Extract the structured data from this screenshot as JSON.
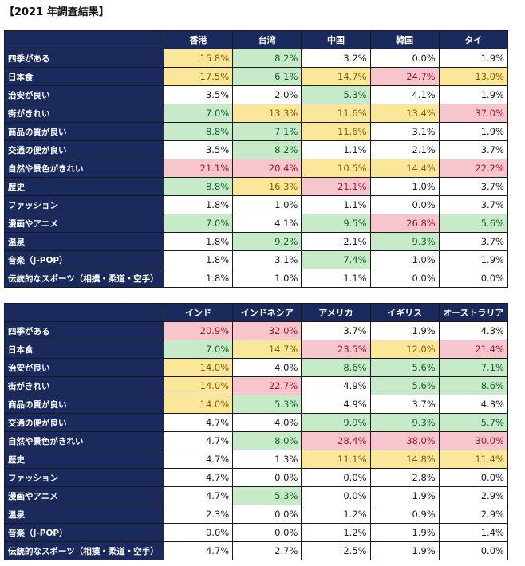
{
  "title": "【2021 年調査結果】",
  "colors": {
    "header_bg": "#1b2a5c",
    "yellow": "#fbe79a",
    "green": "#c7ebc9",
    "pink": "#f7c5cc"
  },
  "chart_data": [
    {
      "type": "table",
      "columns": [
        "香港",
        "台湾",
        "中国",
        "韓国",
        "タイ"
      ],
      "rows": [
        {
          "label": "四季がある",
          "values": [
            "15.8%",
            "8.2%",
            "3.2%",
            "0.0%",
            "1.9%"
          ],
          "highlight": [
            "y",
            "g",
            "n",
            "n",
            "n"
          ]
        },
        {
          "label": "日本食",
          "values": [
            "17.5%",
            "6.1%",
            "14.7%",
            "24.7%",
            "13.0%"
          ],
          "highlight": [
            "y",
            "g",
            "y",
            "p",
            "y"
          ]
        },
        {
          "label": "治安が良い",
          "values": [
            "3.5%",
            "2.0%",
            "5.3%",
            "4.1%",
            "1.9%"
          ],
          "highlight": [
            "n",
            "n",
            "g",
            "n",
            "n"
          ]
        },
        {
          "label": "街がきれい",
          "values": [
            "7.0%",
            "13.3%",
            "11.6%",
            "13.4%",
            "37.0%"
          ],
          "highlight": [
            "g",
            "y",
            "y",
            "y",
            "p"
          ]
        },
        {
          "label": "商品の質が良い",
          "values": [
            "8.8%",
            "7.1%",
            "11.6%",
            "3.1%",
            "1.9%"
          ],
          "highlight": [
            "g",
            "g",
            "y",
            "n",
            "n"
          ]
        },
        {
          "label": "交通の便が良い",
          "values": [
            "3.5%",
            "8.2%",
            "1.1%",
            "2.1%",
            "3.7%"
          ],
          "highlight": [
            "n",
            "g",
            "n",
            "n",
            "n"
          ]
        },
        {
          "label": "自然や景色がきれい",
          "values": [
            "21.1%",
            "20.4%",
            "10.5%",
            "14.4%",
            "22.2%"
          ],
          "highlight": [
            "p",
            "p",
            "y",
            "y",
            "p"
          ]
        },
        {
          "label": "歴史",
          "values": [
            "8.8%",
            "16.3%",
            "21.1%",
            "1.0%",
            "3.7%"
          ],
          "highlight": [
            "g",
            "y",
            "p",
            "n",
            "n"
          ]
        },
        {
          "label": "ファッション",
          "values": [
            "1.8%",
            "1.0%",
            "1.1%",
            "0.0%",
            "3.7%"
          ],
          "highlight": [
            "n",
            "n",
            "n",
            "n",
            "n"
          ]
        },
        {
          "label": "漫画やアニメ",
          "values": [
            "7.0%",
            "4.1%",
            "9.5%",
            "26.8%",
            "5.6%"
          ],
          "highlight": [
            "g",
            "n",
            "g",
            "p",
            "g"
          ]
        },
        {
          "label": "温泉",
          "values": [
            "1.8%",
            "9.2%",
            "2.1%",
            "9.3%",
            "3.7%"
          ],
          "highlight": [
            "n",
            "g",
            "n",
            "g",
            "n"
          ]
        },
        {
          "label": "音楽（J-POP）",
          "values": [
            "1.8%",
            "3.1%",
            "7.4%",
            "1.0%",
            "1.9%"
          ],
          "highlight": [
            "n",
            "n",
            "g",
            "n",
            "n"
          ]
        },
        {
          "label": "伝統的なスポーツ（相撲・柔道・空手）",
          "values": [
            "1.8%",
            "1.0%",
            "1.1%",
            "0.0%",
            "0.0%"
          ],
          "highlight": [
            "n",
            "n",
            "n",
            "n",
            "n"
          ]
        }
      ]
    },
    {
      "type": "table",
      "columns": [
        "インド",
        "インドネシア",
        "アメリカ",
        "イギリス",
        "オーストラリア"
      ],
      "rows": [
        {
          "label": "四季がある",
          "values": [
            "20.9%",
            "32.0%",
            "3.7%",
            "1.9%",
            "4.3%"
          ],
          "highlight": [
            "p",
            "p",
            "n",
            "n",
            "n"
          ]
        },
        {
          "label": "日本食",
          "values": [
            "7.0%",
            "14.7%",
            "23.5%",
            "12.0%",
            "21.4%"
          ],
          "highlight": [
            "g",
            "y",
            "p",
            "y",
            "p"
          ]
        },
        {
          "label": "治安が良い",
          "values": [
            "14.0%",
            "4.0%",
            "8.6%",
            "5.6%",
            "7.1%"
          ],
          "highlight": [
            "y",
            "n",
            "g",
            "g",
            "g"
          ]
        },
        {
          "label": "街がきれい",
          "values": [
            "14.0%",
            "22.7%",
            "4.9%",
            "5.6%",
            "8.6%"
          ],
          "highlight": [
            "y",
            "p",
            "n",
            "g",
            "g"
          ]
        },
        {
          "label": "商品の質が良い",
          "values": [
            "14.0%",
            "5.3%",
            "4.9%",
            "3.7%",
            "4.3%"
          ],
          "highlight": [
            "y",
            "g",
            "n",
            "n",
            "n"
          ]
        },
        {
          "label": "交通の便が良い",
          "values": [
            "4.7%",
            "4.0%",
            "9.9%",
            "9.3%",
            "5.7%"
          ],
          "highlight": [
            "n",
            "n",
            "g",
            "g",
            "g"
          ]
        },
        {
          "label": "自然や景色がきれい",
          "values": [
            "4.7%",
            "8.0%",
            "28.4%",
            "38.0%",
            "30.0%"
          ],
          "highlight": [
            "n",
            "g",
            "p",
            "p",
            "p"
          ]
        },
        {
          "label": "歴史",
          "values": [
            "4.7%",
            "1.3%",
            "11.1%",
            "14.8%",
            "11.4%"
          ],
          "highlight": [
            "n",
            "n",
            "y",
            "y",
            "y"
          ]
        },
        {
          "label": "ファッション",
          "values": [
            "4.7%",
            "0.0%",
            "0.0%",
            "2.8%",
            "0.0%"
          ],
          "highlight": [
            "n",
            "n",
            "n",
            "n",
            "n"
          ]
        },
        {
          "label": "漫画やアニメ",
          "values": [
            "4.7%",
            "5.3%",
            "0.0%",
            "1.9%",
            "2.9%"
          ],
          "highlight": [
            "n",
            "g",
            "n",
            "n",
            "n"
          ]
        },
        {
          "label": "温泉",
          "values": [
            "2.3%",
            "0.0%",
            "1.2%",
            "0.9%",
            "2.9%"
          ],
          "highlight": [
            "n",
            "n",
            "n",
            "n",
            "n"
          ]
        },
        {
          "label": "音楽（J-POP）",
          "values": [
            "0.0%",
            "0.0%",
            "1.2%",
            "1.9%",
            "1.4%"
          ],
          "highlight": [
            "n",
            "n",
            "n",
            "n",
            "n"
          ]
        },
        {
          "label": "伝統的なスポーツ（相撲・柔道・空手）",
          "values": [
            "4.7%",
            "2.7%",
            "2.5%",
            "1.9%",
            "0.0%"
          ],
          "highlight": [
            "n",
            "n",
            "n",
            "n",
            "n"
          ]
        }
      ]
    }
  ]
}
